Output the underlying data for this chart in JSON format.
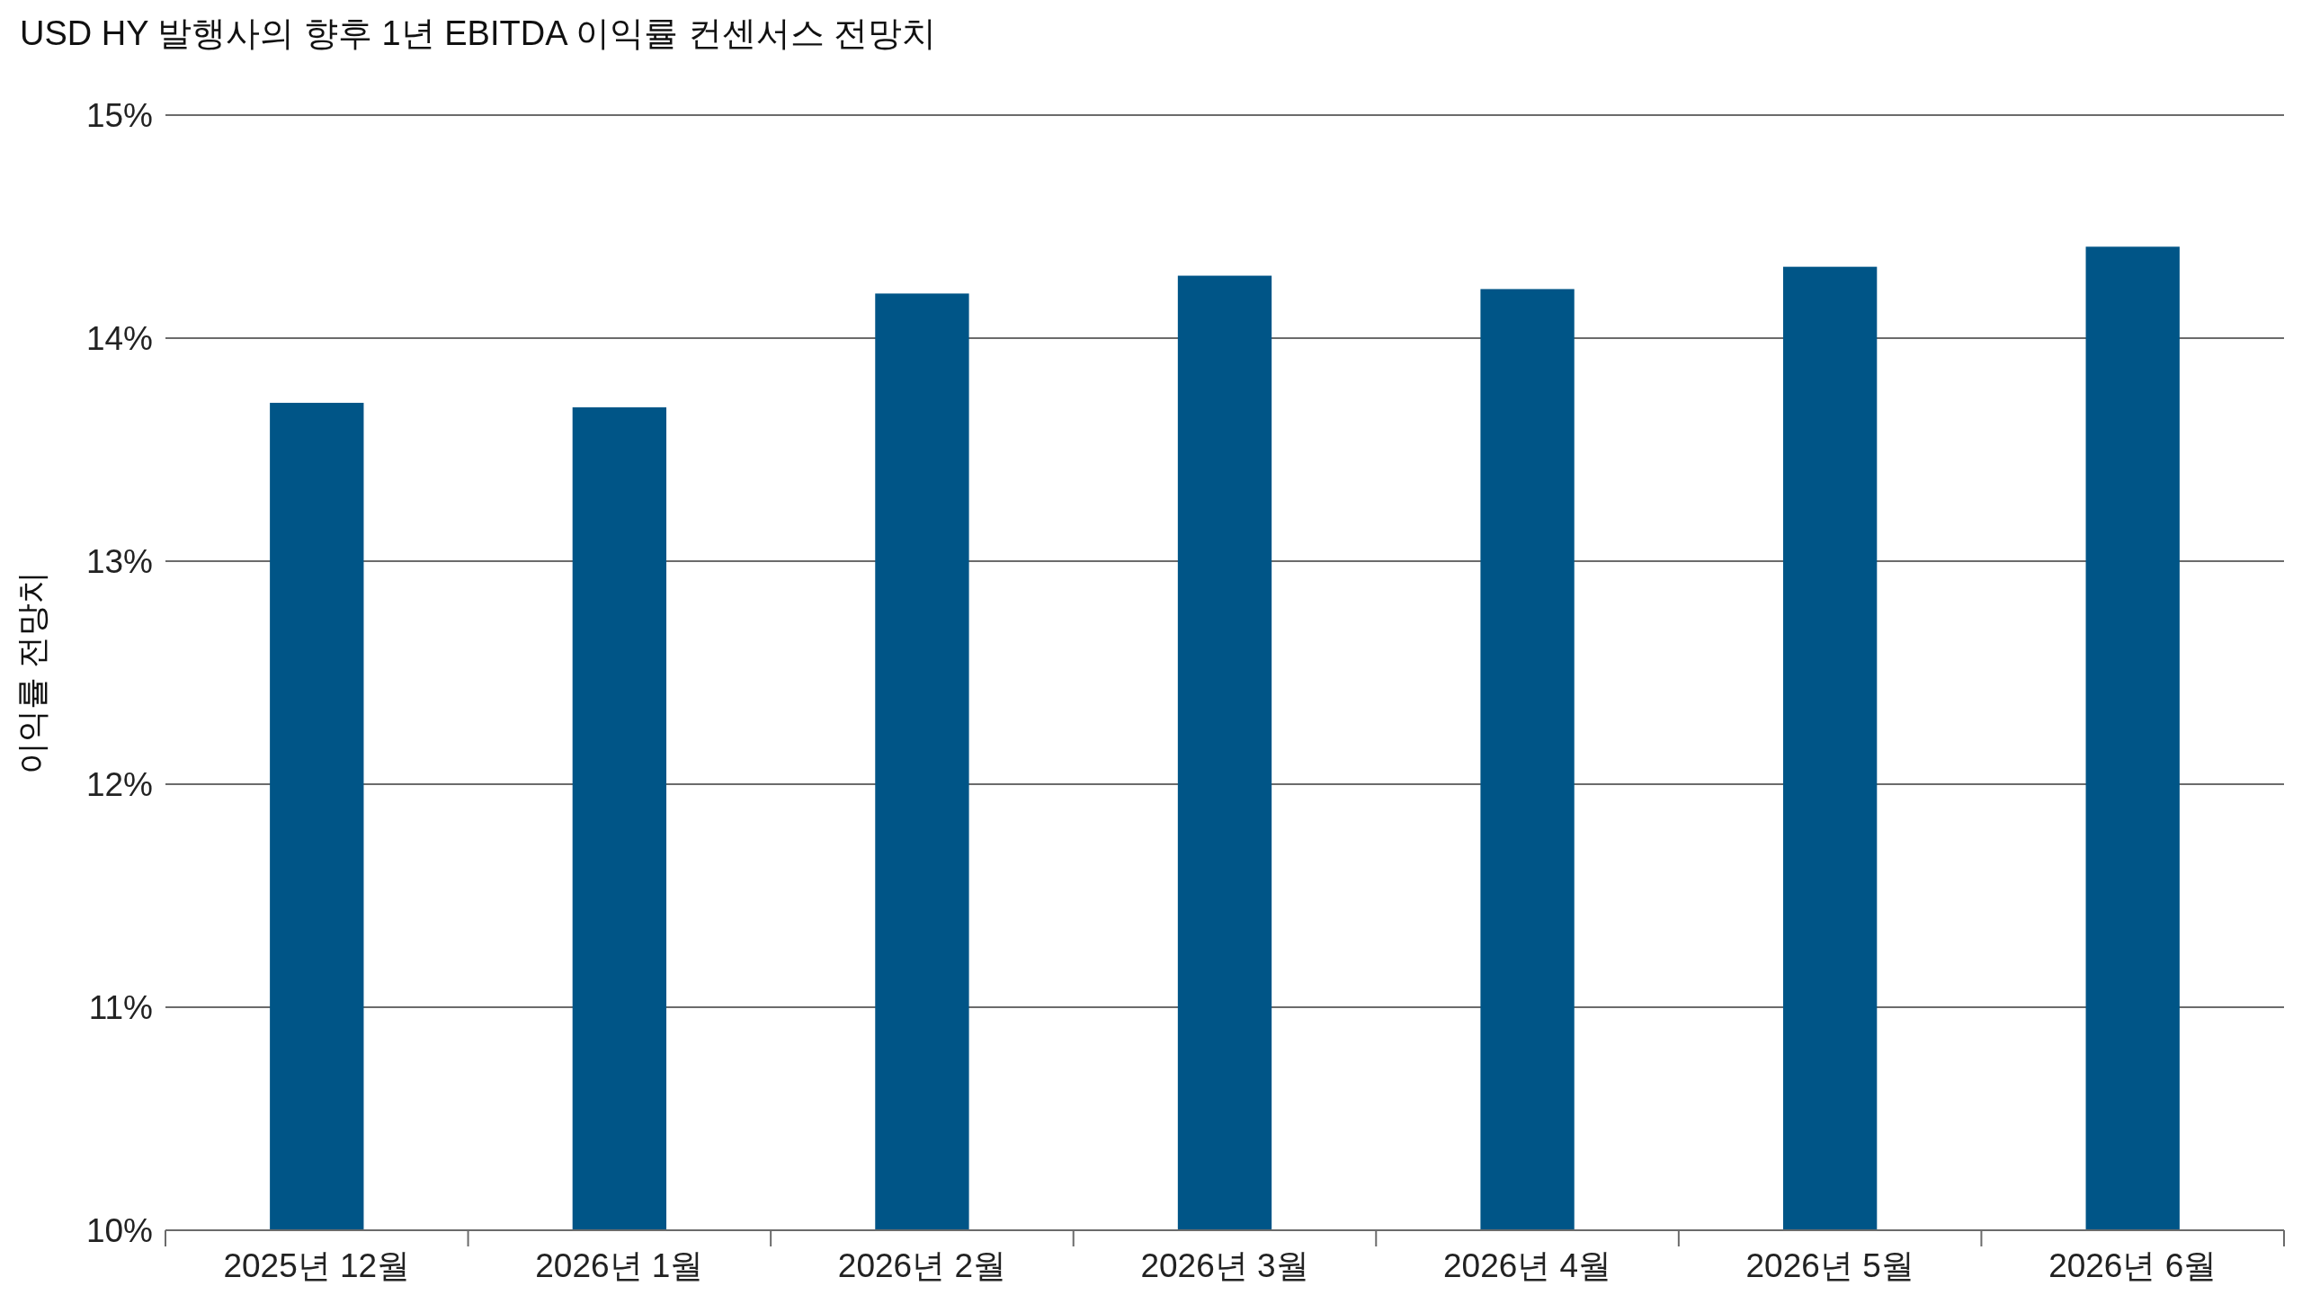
{
  "chart_data": {
    "type": "bar",
    "title": "USD HY 발행사의 향후 1년 EBITDA 이익률 컨센서스 전망치",
    "ylabel": "이익률 전망치",
    "categories": [
      "2025년 12월",
      "2026년 1월",
      "2026년 2월",
      "2026년 3월",
      "2026년 4월",
      "2026년 5월",
      "2026년 6월"
    ],
    "values": [
      13.71,
      13.69,
      14.2,
      14.28,
      14.22,
      14.32,
      14.41
    ],
    "color": "#005587",
    "ylim": [
      10,
      15
    ],
    "yticks": [
      {
        "value": 10,
        "label": "10%"
      },
      {
        "value": 11,
        "label": "11%"
      },
      {
        "value": 12,
        "label": "12%"
      },
      {
        "value": 13,
        "label": "13%"
      },
      {
        "value": 14,
        "label": "14%"
      },
      {
        "value": 15,
        "label": "15%"
      }
    ],
    "grid": "y"
  }
}
